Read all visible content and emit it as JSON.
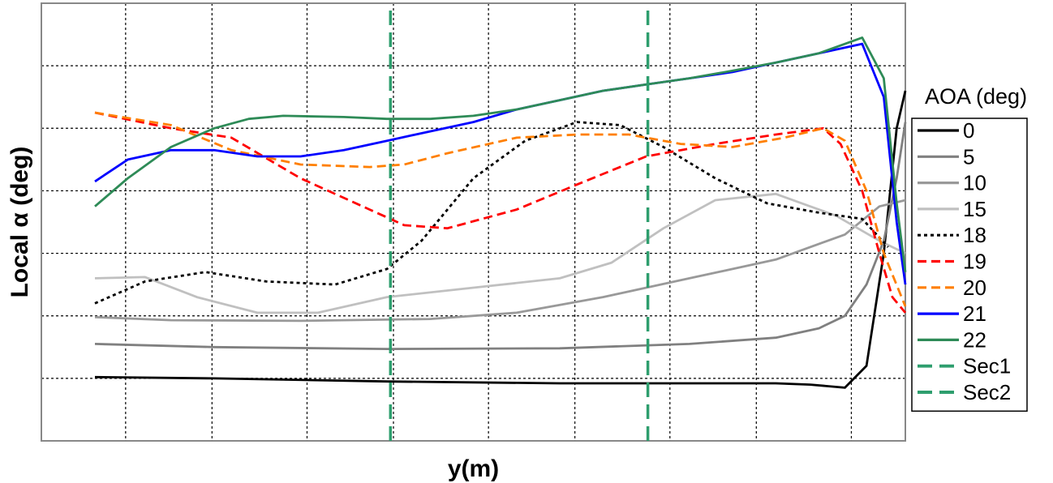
{
  "chart_data": {
    "type": "line",
    "title": "",
    "xlabel": "y(m)",
    "ylabel": "Local α (deg)",
    "xlim": [
      0,
      1
    ],
    "ylim": [
      0,
      7
    ],
    "grid": true,
    "legend_position": "right",
    "legend_title": "AOA (deg)",
    "series": [
      {
        "name": "0",
        "color": "#000000",
        "dash": "solid",
        "x": [
          0.062,
          0.2,
          0.4,
          0.6,
          0.8,
          0.85,
          0.89,
          0.93,
          0.955,
          0.975,
          0.99,
          1.0
        ],
        "y": [
          1.02,
          1.0,
          0.95,
          0.92,
          0.92,
          0.92,
          0.9,
          0.85,
          1.2,
          3.0,
          5.0,
          5.6
        ]
      },
      {
        "name": "5",
        "color": "#808080",
        "dash": "solid",
        "x": [
          0.062,
          0.2,
          0.4,
          0.6,
          0.75,
          0.85,
          0.9,
          0.93,
          0.955,
          0.975,
          0.99,
          1.0
        ],
        "y": [
          1.55,
          1.5,
          1.47,
          1.48,
          1.55,
          1.65,
          1.8,
          2.0,
          2.5,
          3.2,
          4.2,
          5.1
        ]
      },
      {
        "name": "10",
        "color": "#999999",
        "dash": "solid",
        "x": [
          0.062,
          0.15,
          0.3,
          0.45,
          0.55,
          0.65,
          0.75,
          0.85,
          0.93,
          0.97,
          1.0
        ],
        "y": [
          1.98,
          1.93,
          1.92,
          1.95,
          2.05,
          2.3,
          2.6,
          2.9,
          3.3,
          3.75,
          3.85
        ]
      },
      {
        "name": "15",
        "color": "#c0c0c0",
        "dash": "solid",
        "x": [
          0.062,
          0.12,
          0.18,
          0.25,
          0.32,
          0.4,
          0.5,
          0.6,
          0.66,
          0.72,
          0.78,
          0.85,
          0.92,
          0.97,
          1.0
        ],
        "y": [
          2.6,
          2.62,
          2.3,
          2.05,
          2.05,
          2.3,
          2.45,
          2.6,
          2.85,
          3.4,
          3.85,
          3.95,
          3.6,
          3.2,
          3.0
        ]
      },
      {
        "name": "18",
        "color": "#000000",
        "dash": "dot",
        "x": [
          0.062,
          0.12,
          0.19,
          0.26,
          0.34,
          0.4,
          0.44,
          0.5,
          0.56,
          0.62,
          0.67,
          0.72,
          0.78,
          0.84,
          0.9,
          0.95,
          0.98
        ],
        "y": [
          2.2,
          2.55,
          2.7,
          2.55,
          2.5,
          2.75,
          3.2,
          4.2,
          4.8,
          5.1,
          5.05,
          4.7,
          4.2,
          3.8,
          3.65,
          3.55,
          3.1
        ]
      },
      {
        "name": "19",
        "color": "#ff0000",
        "dash": "dash",
        "x": [
          0.062,
          0.15,
          0.22,
          0.3,
          0.38,
          0.42,
          0.47,
          0.55,
          0.62,
          0.7,
          0.78,
          0.85,
          0.905,
          0.925,
          0.95,
          0.97,
          0.985,
          1.0
        ],
        "y": [
          5.25,
          5.0,
          4.85,
          4.2,
          3.7,
          3.45,
          3.4,
          3.7,
          4.1,
          4.55,
          4.75,
          4.9,
          5.0,
          4.75,
          4.0,
          3.0,
          2.3,
          2.05
        ]
      },
      {
        "name": "20",
        "color": "#ff7f00",
        "dash": "dash",
        "x": [
          0.062,
          0.15,
          0.22,
          0.3,
          0.38,
          0.42,
          0.47,
          0.55,
          0.62,
          0.68,
          0.74,
          0.8,
          0.86,
          0.905,
          0.93,
          0.955,
          0.975,
          1.0
        ],
        "y": [
          5.25,
          5.05,
          4.65,
          4.42,
          4.38,
          4.42,
          4.6,
          4.85,
          4.9,
          4.9,
          4.75,
          4.7,
          4.85,
          5.0,
          4.8,
          4.0,
          3.0,
          2.15
        ]
      },
      {
        "name": "21",
        "color": "#0000ff",
        "dash": "solid",
        "x": [
          0.062,
          0.1,
          0.15,
          0.2,
          0.25,
          0.3,
          0.35,
          0.4,
          0.45,
          0.5,
          0.55,
          0.6,
          0.65,
          0.7,
          0.75,
          0.8,
          0.85,
          0.9,
          0.95,
          0.975,
          0.99,
          1.0
        ],
        "y": [
          4.15,
          4.5,
          4.65,
          4.65,
          4.55,
          4.55,
          4.65,
          4.8,
          4.95,
          5.1,
          5.3,
          5.45,
          5.6,
          5.7,
          5.8,
          5.9,
          6.05,
          6.2,
          6.35,
          5.5,
          3.5,
          2.5
        ]
      },
      {
        "name": "22",
        "color": "#2e8b57",
        "dash": "solid",
        "x": [
          0.062,
          0.1,
          0.15,
          0.2,
          0.24,
          0.28,
          0.35,
          0.4,
          0.45,
          0.5,
          0.55,
          0.6,
          0.65,
          0.7,
          0.75,
          0.8,
          0.85,
          0.9,
          0.95,
          0.975,
          0.99,
          1.0
        ],
        "y": [
          3.75,
          4.2,
          4.7,
          5.0,
          5.15,
          5.2,
          5.18,
          5.15,
          5.15,
          5.2,
          5.3,
          5.45,
          5.6,
          5.7,
          5.8,
          5.92,
          6.05,
          6.2,
          6.45,
          5.8,
          3.8,
          2.7
        ]
      },
      {
        "name": "Sec1",
        "color": "#2e9e6e",
        "dash": "longdash",
        "x": [
          0.404,
          0.404
        ],
        "y": [
          0,
          7
        ]
      },
      {
        "name": "Sec2",
        "color": "#2e9e6e",
        "dash": "longdash",
        "x": [
          0.702,
          0.702
        ],
        "y": [
          0,
          7
        ]
      }
    ]
  }
}
